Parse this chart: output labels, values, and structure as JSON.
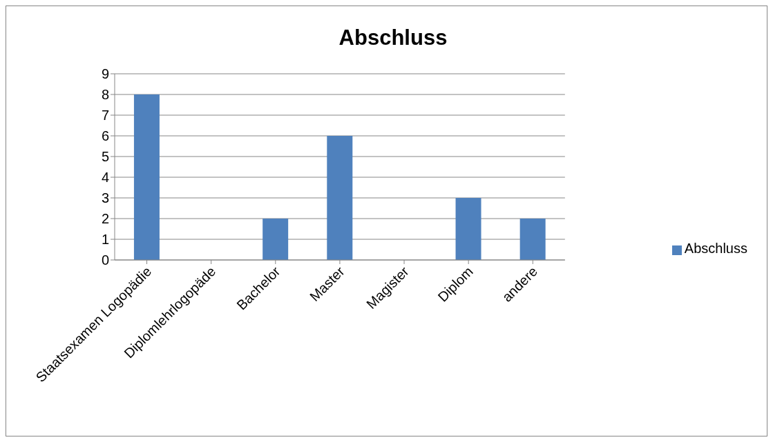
{
  "chart_data": {
    "type": "bar",
    "title": "Abschluss",
    "categories": [
      "Staatsexamen Logopädie",
      "Diplomlehrlogopäde",
      "Bachelor",
      "Master",
      "Magister",
      "Diplom",
      "andere"
    ],
    "series": [
      {
        "name": "Abschluss",
        "color": "#4f81bd",
        "values": [
          8,
          0,
          2,
          6,
          0,
          3,
          2
        ]
      }
    ],
    "ylim": [
      0,
      9
    ],
    "yticks": [
      0,
      1,
      2,
      3,
      4,
      5,
      6,
      7,
      8,
      9
    ],
    "grid": "y",
    "legend": "right"
  }
}
